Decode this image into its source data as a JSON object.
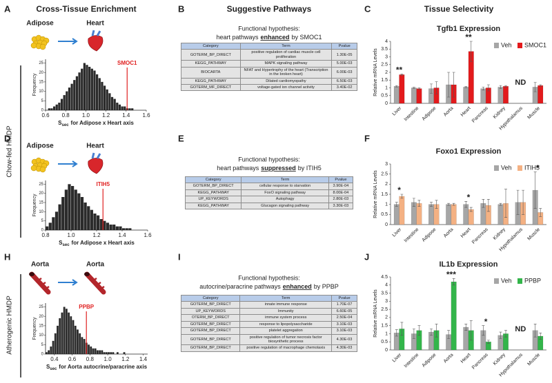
{
  "column_titles": [
    "Cross-Tissue Enrichment",
    "Suggestive Pathways",
    "Tissue Selectivity"
  ],
  "panel_letters": [
    "A",
    "B",
    "C",
    "D",
    "E",
    "F",
    "H",
    "I",
    "J"
  ],
  "side_labels": [
    "Chow-fed HMDP",
    "Atherogenic HMDP"
  ],
  "schematics": [
    {
      "from": "Adipose",
      "to": "Heart"
    },
    {
      "from": "Adipose",
      "to": "Heart"
    },
    {
      "from": "Aorta",
      "to": "Aorta"
    }
  ],
  "hypotheses": [
    {
      "intro": "Functional hypothesis:",
      "before": "heart pathways",
      "emphasis": "enhanced",
      "after": "by SMOC1"
    },
    {
      "intro": "Functional hypothesis:",
      "before": "heart pathways",
      "emphasis": "suppressed",
      "after": "by ITIH5"
    },
    {
      "intro": "Functional hypothesis:",
      "before": "autocrine/paracrine pathways",
      "emphasis": "enhanced",
      "after": "by PPBP"
    }
  ],
  "tables": [
    {
      "header": [
        "Category",
        "Term",
        "Pvalue"
      ],
      "rows": [
        [
          "GOTERM_BP_DIRECT",
          "positive regulation of cardiac muscle cell proliferation",
          "1.30E-05"
        ],
        [
          "KEGG_PATHWAY",
          "MAPK signaling pathway",
          "5.00E-03"
        ],
        [
          "BIOCARTA",
          "NFAT and Hypertrophy of the heart (Transcription in the broken heart)",
          "6.00E-03"
        ],
        [
          "KEGG_PATHWAY",
          "Dilated cardiomyopathy",
          "6.50E-03"
        ],
        [
          "GOTERM_MF_DIRECT",
          "voltage-gated ion channel activity",
          "3.40E-02"
        ]
      ]
    },
    {
      "header": [
        "Category",
        "Term",
        "Pvalue"
      ],
      "rows": [
        [
          "GOTERM_BP_DIRECT",
          "cellular response to starvation",
          "3.90E-04"
        ],
        [
          "KEGG_PATHWAY",
          "FoxO signaling pathway",
          "8.00E-04"
        ],
        [
          "UP_KEYWORDS",
          "Autophagy",
          "2.80E-03"
        ],
        [
          "KEGG_PATHWAY",
          "Glucagon signaling pathway",
          "3.30E-03"
        ]
      ]
    },
    {
      "header": [
        "Category",
        "Term",
        "Pvalue"
      ],
      "rows": [
        [
          "GOTERM_BP_DIRECT",
          "innate immune response",
          "1.70E-07"
        ],
        [
          "UP_KEYWORDS",
          "Immunity",
          "6.60E-05"
        ],
        [
          "OTERM_BP_DIRECT",
          "immune system process",
          "2.50E-04"
        ],
        [
          "GOTERM_BP_DIRECT",
          "response to lipopolysaccharide",
          "3.10E-03"
        ],
        [
          "GOTERM_BP_DIRECT",
          "platelet aggregation",
          "3.10E-03"
        ],
        [
          "GOTERM_BP_DIRECT",
          "positive regulation of tumor necrosis factor biosynthetic process",
          "4.30E-03"
        ],
        [
          "GOTERM_BP_DIRECT",
          "positive regulation of macrophage chemotaxis",
          "4.30E-03"
        ]
      ]
    }
  ],
  "chart_data": [
    {
      "type": "histogram",
      "color": "#2b2b2b",
      "ylabel": "Frequency",
      "xlabel": {
        "symbol": "S",
        "subscript": "sec",
        "text": "for Adipose x Heart axis"
      },
      "bins": [
        0.6,
        0.625,
        0.65,
        0.675,
        0.7,
        0.725,
        0.75,
        0.775,
        0.8,
        0.825,
        0.85,
        0.875,
        0.9,
        0.925,
        0.95,
        0.975,
        1.0,
        1.025,
        1.05,
        1.075,
        1.1,
        1.125,
        1.15,
        1.175,
        1.2,
        1.225,
        1.25,
        1.275,
        1.3,
        1.325,
        1.35,
        1.375,
        1.4,
        1.425,
        1.45,
        1.475,
        1.5
      ],
      "counts": [
        0,
        1,
        1,
        2,
        3,
        4,
        6,
        8,
        10,
        12,
        14,
        16,
        18,
        20,
        22,
        25,
        24,
        23,
        22,
        21,
        19,
        17,
        15,
        13,
        11,
        9,
        7,
        6,
        4,
        3,
        2,
        2,
        1,
        1,
        1,
        0
      ],
      "xlim": [
        0.6,
        1.6
      ],
      "xticks": [
        0.6,
        0.8,
        {
          "value": 1,
          "label": "1.0"
        },
        1.2,
        1.4,
        1.6
      ],
      "ylim": [
        0,
        27
      ],
      "yticks": [
        0,
        5,
        10,
        15,
        20,
        25
      ],
      "highlight": {
        "value": 1.41,
        "label": "SMOC1",
        "color": "#e02020"
      }
    },
    {
      "type": "histogram",
      "color": "#2b2b2b",
      "ylabel": "Frequency",
      "xlabel": {
        "symbol": "S",
        "subscript": "sec",
        "text": "for Adipose x Heart axis"
      },
      "bins": [
        0.8,
        0.825,
        0.85,
        0.875,
        0.9,
        0.925,
        0.95,
        0.975,
        1.0,
        1.025,
        1.05,
        1.075,
        1.1,
        1.125,
        1.15,
        1.175,
        1.2,
        1.225,
        1.25,
        1.275,
        1.3,
        1.325,
        1.35,
        1.375,
        1.4,
        1.425,
        1.45,
        1.475,
        1.5
      ],
      "counts": [
        2,
        4,
        7,
        10,
        14,
        18,
        22,
        25,
        24,
        22,
        20,
        18,
        15,
        13,
        11,
        9,
        8,
        6,
        5,
        4,
        3,
        3,
        2,
        2,
        1,
        1,
        1,
        0
      ],
      "xlim": [
        0.8,
        1.6
      ],
      "xticks": [
        0.8,
        {
          "value": 1,
          "label": "1.0"
        },
        1.2,
        1.4,
        1.6
      ],
      "ylim": [
        0,
        27
      ],
      "yticks": [
        0,
        5,
        10,
        15,
        20,
        25
      ],
      "highlight": {
        "value": 1.25,
        "label": "ITIH5",
        "color": "#e02020"
      }
    },
    {
      "type": "histogram",
      "color": "#2b2b2b",
      "ylabel": "Frequency",
      "xlabel": {
        "symbol": "S",
        "subscript": "sec",
        "text": "for Aorta autocrine/paracrine axis"
      },
      "bins": [
        0.3,
        0.325,
        0.35,
        0.375,
        0.4,
        0.425,
        0.45,
        0.475,
        0.5,
        0.525,
        0.55,
        0.575,
        0.6,
        0.625,
        0.65,
        0.675,
        0.7,
        0.725,
        0.75,
        0.775,
        0.8,
        0.825,
        0.85,
        0.875,
        0.9,
        0.925,
        0.95,
        0.975,
        1.0,
        1.025,
        1.05,
        1.075,
        1.1,
        1.125,
        1.15,
        1.175,
        1.2
      ],
      "counts": [
        1,
        2,
        4,
        7,
        11,
        15,
        19,
        22,
        25,
        24,
        22,
        20,
        18,
        15,
        13,
        11,
        9,
        8,
        6,
        5,
        4,
        3,
        3,
        2,
        2,
        2,
        1,
        1,
        1,
        1,
        1,
        0,
        1,
        0,
        0,
        1
      ],
      "xlim": [
        0.3,
        1.45
      ],
      "xticks": [
        0.4,
        0.6,
        0.8,
        {
          "value": 1,
          "label": "1.0"
        },
        1.2,
        1.4
      ],
      "ylim": [
        0,
        27
      ],
      "yticks": [
        0,
        5,
        10,
        15,
        20,
        25
      ],
      "highlight": {
        "value": 0.76,
        "label": "PPBP",
        "color": "#e02020"
      }
    },
    {
      "type": "bar",
      "title": "Tgfb1 Expression",
      "ylabel": "Relative mRNA Levels",
      "legend": "upper right",
      "categories": [
        "Liver",
        "Intestine",
        "Adipose",
        "Aorta",
        "Heart",
        "Pancreas",
        "Kidney",
        "Hypothalamus",
        "Muscle"
      ],
      "series": [
        {
          "name": "Veh",
          "color": "#a6a6a6",
          "values": [
            1.1,
            1.0,
            0.95,
            1.2,
            1.05,
            0.95,
            1.05,
            null,
            1.05
          ],
          "errors": [
            0.05,
            0.05,
            0.3,
            0.8,
            0.05,
            0.1,
            0.1,
            null,
            0.3
          ]
        },
        {
          "name": "SMOC1",
          "color": "#e31a1c",
          "values": [
            1.85,
            0.95,
            1.0,
            1.2,
            3.35,
            1.0,
            1.1,
            null,
            1.15
          ],
          "errors": [
            0.05,
            0.05,
            0.4,
            0.8,
            0.65,
            0.2,
            0.05,
            null,
            0.05
          ]
        }
      ],
      "ylim": [
        0,
        4
      ],
      "yticks": [
        0,
        0.5,
        1,
        1.5,
        2,
        2.5,
        3,
        3.5,
        4
      ],
      "annotations": [
        {
          "category": "Liver",
          "label": "**"
        },
        {
          "category": "Heart",
          "label": "**"
        },
        {
          "category": "Hypothalamus",
          "label": "ND"
        }
      ]
    },
    {
      "type": "bar",
      "title": "Foxo1 Expression",
      "ylabel": "Relative mRNA Levels",
      "legend": "upper right",
      "categories": [
        "Liver",
        "Intestine",
        "Adipose",
        "Aorta",
        "Heart",
        "Pancreas",
        "Kidney",
        "Hypothalamus",
        "Muscle"
      ],
      "series": [
        {
          "name": "Veh",
          "color": "#a6a6a6",
          "values": [
            1.0,
            1.1,
            1.0,
            1.0,
            1.0,
            1.05,
            1.0,
            1.1,
            1.7
          ],
          "errors": [
            0.1,
            0.2,
            0.1,
            0.05,
            0.15,
            0.2,
            0.05,
            0.6,
            0.9
          ]
        },
        {
          "name": "ITIH5",
          "color": "#f4b183",
          "values": [
            1.4,
            1.05,
            1.0,
            1.0,
            0.75,
            0.95,
            1.05,
            1.1,
            0.6
          ],
          "errors": [
            0.1,
            0.15,
            0.2,
            0.05,
            0.1,
            0.3,
            0.7,
            0.6,
            0.2
          ]
        }
      ],
      "ylim": [
        0,
        3
      ],
      "yticks": [
        0,
        0.5,
        1,
        1.5,
        2,
        2.5,
        3
      ],
      "annotations": [
        {
          "category": "Liver",
          "label": "*"
        },
        {
          "category": "Heart",
          "label": "*"
        },
        {
          "category": "Muscle",
          "label": "*"
        }
      ]
    },
    {
      "type": "bar",
      "title": "IL1b Expression",
      "ylabel": "Relative mRNA Levels",
      "legend": "upper right",
      "categories": [
        "Liver",
        "Intestine",
        "Adipose",
        "Aorta",
        "Heart",
        "Pancreas",
        "Kidney",
        "Hypothalamus",
        "Muscle"
      ],
      "series": [
        {
          "name": "Veh",
          "color": "#a6a6a6",
          "values": [
            1.05,
            1.0,
            1.1,
            0.95,
            1.4,
            1.2,
            0.9,
            null,
            1.2
          ],
          "errors": [
            0.2,
            0.3,
            0.2,
            0.25,
            0.2,
            0.3,
            0.2,
            null,
            0.4
          ]
        },
        {
          "name": "PPBP",
          "color": "#33b54a",
          "values": [
            1.3,
            1.2,
            1.2,
            4.2,
            1.2,
            0.5,
            1.0,
            null,
            0.85
          ],
          "errors": [
            0.4,
            0.3,
            0.4,
            0.2,
            0.6,
            0.1,
            0.2,
            null,
            0.2
          ]
        }
      ],
      "ylim": [
        0,
        4.5
      ],
      "yticks": [
        0,
        0.5,
        1,
        1.5,
        2,
        2.5,
        3,
        3.5,
        4,
        4.5
      ],
      "annotations": [
        {
          "category": "Aorta",
          "label": "***"
        },
        {
          "category": "Pancreas",
          "label": "*"
        },
        {
          "category": "Hypothalamus",
          "label": "ND"
        }
      ]
    }
  ]
}
